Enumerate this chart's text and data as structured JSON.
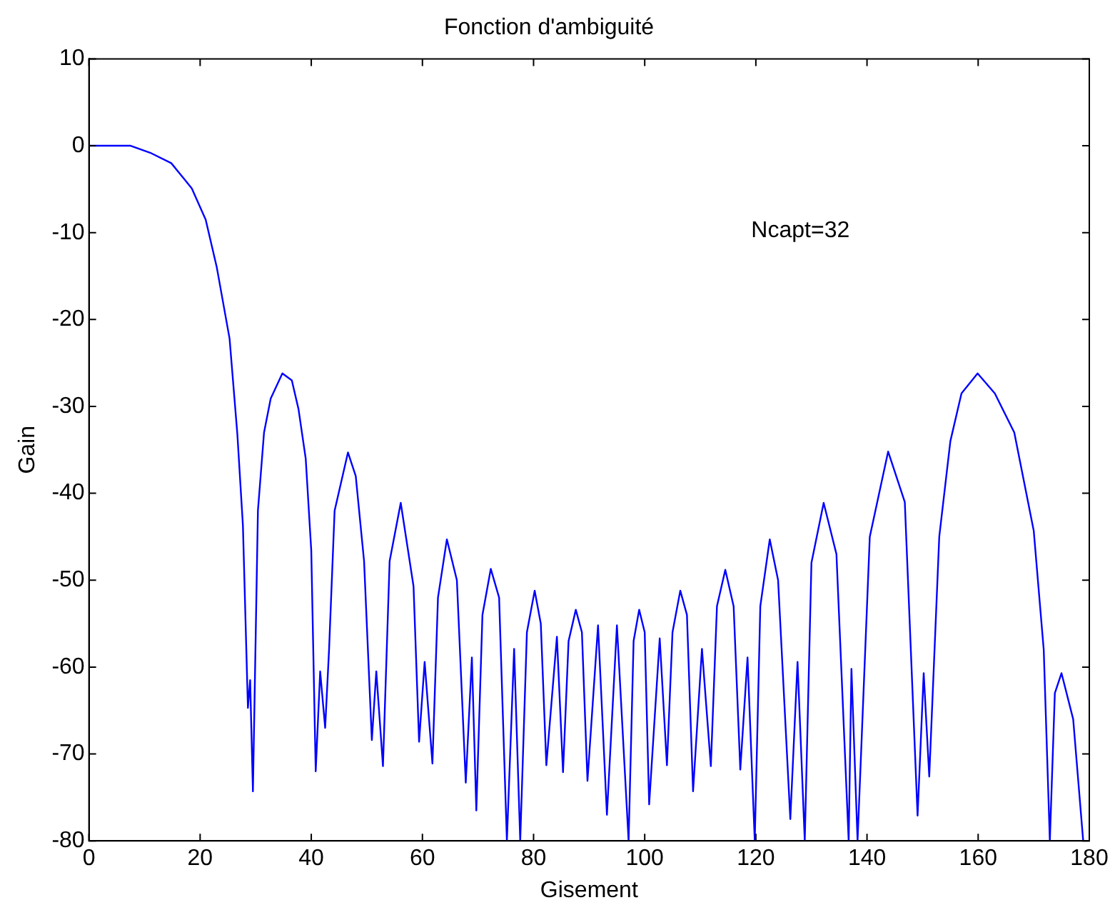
{
  "chart_data": {
    "type": "line",
    "title": "Fonction d'ambiguité",
    "xlabel": "Gisement",
    "ylabel": "Gain",
    "annotations": [
      "Ncapt=32"
    ],
    "xlim": [
      0,
      180
    ],
    "xticks": [
      0,
      20,
      40,
      60,
      80,
      100,
      120,
      140,
      160,
      180
    ],
    "ylim": [
      -80,
      10
    ],
    "yticks": [
      -80,
      -70,
      -60,
      -50,
      -40,
      -30,
      -20,
      -10,
      0,
      10
    ],
    "grid": false,
    "legend": false,
    "marker": "none",
    "line_style": "solid",
    "series": [
      {
        "color": "#0000ff",
        "x": [
          0,
          7.5,
          11,
          14.8,
          18.5,
          21,
          23,
          25.3,
          26.7,
          27.7,
          28.6,
          29,
          29.5,
          30.4,
          31.5,
          32.7,
          34.8,
          36.5,
          37.7,
          39,
          40,
          40.8,
          41.6,
          42.5,
          43.2,
          44.2,
          46.6,
          48,
          49.5,
          50.9,
          51.7,
          52.9,
          54.1,
          56.1,
          58.4,
          59.4,
          60.4,
          61.8,
          62.8,
          64.4,
          66.2,
          67.8,
          68.9,
          69.7,
          70.8,
          72.3,
          73.8,
          75.2,
          76.5,
          77.6,
          78.8,
          80.2,
          81.3,
          82.3,
          84.2,
          85.3,
          86.3,
          87.6,
          88.7,
          89.7,
          91.6,
          93.2,
          95,
          97.1,
          98,
          99,
          100,
          100.8,
          102.7,
          104,
          105,
          106.4,
          107.6,
          108.7,
          110.3,
          111.9,
          113,
          114.5,
          116,
          117.2,
          118.5,
          119.8,
          120.8,
          122.5,
          124,
          126.2,
          127.5,
          128.8,
          130,
          132.2,
          134.5,
          136.7,
          137.2,
          138.3,
          140.5,
          143.8,
          146.8,
          149.1,
          150.2,
          151.2,
          153,
          155,
          157,
          159.9,
          163,
          166.5,
          170,
          171.8,
          172.9,
          173.8,
          175,
          177.1,
          178.9
        ],
        "values": [
          0,
          0,
          -0.8,
          -2,
          -4.9,
          -8.5,
          -14,
          -22.2,
          -33.2,
          -43.7,
          -64.7,
          -61.5,
          -74.3,
          -42,
          -33,
          -29.1,
          -26.2,
          -27,
          -30.3,
          -36,
          -46.6,
          -72,
          -60.5,
          -67,
          -58,
          -42,
          -35.3,
          -38,
          -47.8,
          -68.4,
          -60.5,
          -71.4,
          -47.8,
          -41.1,
          -50.7,
          -68.6,
          -59.4,
          -71.1,
          -52,
          -45.3,
          -50,
          -73.3,
          -58.9,
          -76.5,
          -54,
          -48.7,
          -52,
          -80,
          -57.9,
          -80,
          -56,
          -51.2,
          -55,
          -71.3,
          -56.5,
          -72.1,
          -57,
          -53.4,
          -56,
          -73.1,
          -55.2,
          -77,
          -55.2,
          -80,
          -57,
          -53.4,
          -56,
          -75.8,
          -56.7,
          -71.3,
          -56,
          -51.2,
          -54,
          -74.3,
          -57.9,
          -71.4,
          -53,
          -48.8,
          -53,
          -71.8,
          -58.9,
          -80,
          -53,
          -45.3,
          -50,
          -77.5,
          -59.4,
          -80,
          -48,
          -41.1,
          -47,
          -80,
          -60.2,
          -80,
          -45,
          -35.2,
          -41,
          -77.1,
          -60.7,
          -72.6,
          -45,
          -34,
          -28.5,
          -26.2,
          -28.5,
          -33,
          -44.3,
          -58,
          -80,
          -63,
          -60.7,
          -66,
          -80
        ]
      }
    ]
  }
}
